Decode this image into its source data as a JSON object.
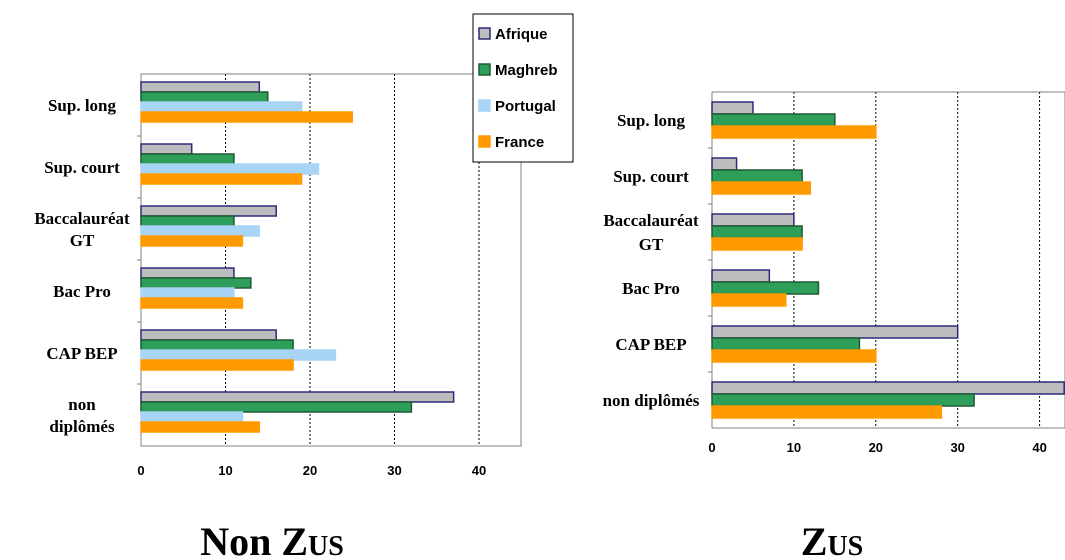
{
  "legend": {
    "position": "top-center",
    "entries": [
      {
        "name": "Afrique",
        "color": "#bdbdbd",
        "border": "#2b2b7a"
      },
      {
        "name": "Maghreb",
        "color": "#2e9e5b",
        "border": "#1f5b33"
      },
      {
        "name": "Portugal",
        "color": "#a8d4f5",
        "border": "#a8d4f5"
      },
      {
        "name": "France",
        "color": "#ff9a00",
        "border": "#ff9a00"
      }
    ]
  },
  "chart_data": [
    {
      "type": "bar",
      "orientation": "horizontal",
      "title": "Non ZUS",
      "title_main": "Non Z",
      "title_small": "US",
      "categories": [
        [
          "Sup. long"
        ],
        [
          "Sup. court"
        ],
        [
          "Baccalauréat",
          "GT"
        ],
        [
          "Bac Pro"
        ],
        [
          "CAP BEP"
        ],
        [
          "non",
          "diplômés"
        ]
      ],
      "xlim": [
        0,
        45
      ],
      "xticks": [
        0,
        10,
        20,
        30,
        40
      ],
      "grid": true,
      "series": [
        {
          "name": "Afrique",
          "values": [
            14,
            6,
            16,
            11,
            16,
            37
          ]
        },
        {
          "name": "Maghreb",
          "values": [
            15,
            11,
            11,
            13,
            18,
            32
          ]
        },
        {
          "name": "Portugal",
          "values": [
            19,
            21,
            14,
            11,
            23,
            12
          ]
        },
        {
          "name": "France",
          "values": [
            25,
            19,
            12,
            12,
            18,
            14
          ]
        }
      ]
    },
    {
      "type": "bar",
      "orientation": "horizontal",
      "title": "ZUS",
      "title_main": "Z",
      "title_small": "US",
      "categories": [
        [
          "Sup. long"
        ],
        [
          "Sup. court"
        ],
        [
          "Baccalauréat",
          "GT"
        ],
        [
          "Bac Pro"
        ],
        [
          "CAP BEP"
        ],
        [
          "non diplômés"
        ]
      ],
      "xlim": [
        0,
        43
      ],
      "xticks": [
        0,
        10,
        20,
        30,
        40
      ],
      "grid": true,
      "series": [
        {
          "name": "Afrique",
          "values": [
            5,
            3,
            10,
            7,
            30,
            43
          ]
        },
        {
          "name": "Maghreb",
          "values": [
            15,
            11,
            11,
            13,
            18,
            32
          ]
        },
        {
          "name": "France",
          "values": [
            20,
            12,
            11,
            9,
            20,
            28
          ]
        }
      ]
    }
  ]
}
